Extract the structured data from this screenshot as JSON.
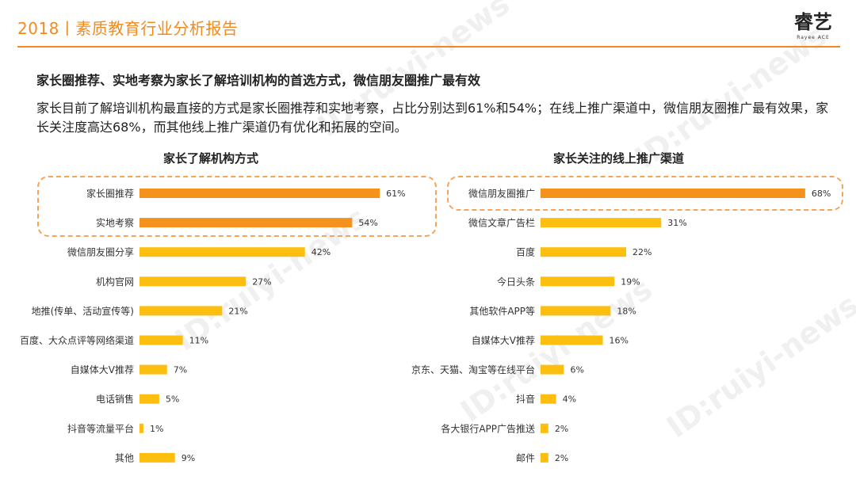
{
  "header": {
    "title": "2018丨素质教育行业分析报告",
    "logo_text": "睿艺",
    "logo_sub": "Rayee ACE"
  },
  "subtitle": "家长圈推荐、实地考察为家长了解培训机构的首选方式，微信朋友圈推广最有效",
  "description": "家长目前了解培训机构最直接的方式是家长圈推荐和实地考察，占比分别达到61%和54%；在线上推广渠道中，微信朋友圈推广最有效果，家长关注度高达68%，而其他线上推广渠道仍有优化和拓展的空间。",
  "watermark": "ID:ruiyi-news",
  "colors": {
    "accent": "#f28a1e",
    "bar_highlight": "#f5921e",
    "bar_default": "#fcbf0f"
  },
  "chart_data": [
    {
      "type": "bar",
      "orientation": "horizontal",
      "title": "家长了解机构方式",
      "categories": [
        "家长圈推荐",
        "实地考察",
        "微信朋友圈分享",
        "机构官网",
        "地推(传单、活动宣传等)",
        "百度、大众点评等网络渠道",
        "自媒体大V推荐",
        "电话销售",
        "抖音等流量平台",
        "其他"
      ],
      "values": [
        61,
        54,
        42,
        27,
        21,
        11,
        7,
        5,
        1,
        9
      ],
      "value_labels": [
        "61%",
        "54%",
        "42%",
        "27%",
        "21%",
        "11%",
        "7%",
        "5%",
        "1%",
        "9%"
      ],
      "highlighted": [
        0,
        1
      ],
      "xlim": [
        0,
        100
      ]
    },
    {
      "type": "bar",
      "orientation": "horizontal",
      "title": "家长关注的线上推广渠道",
      "categories": [
        "微信朋友圈推广",
        "微信文章广告栏",
        "百度",
        "今日头条",
        "其他软件APP等",
        "自媒体大V推荐",
        "京东、天猫、淘宝等在线平台",
        "抖音",
        "各大银行APP广告推送",
        "邮件"
      ],
      "values": [
        68,
        31,
        22,
        19,
        18,
        16,
        6,
        4,
        2,
        2
      ],
      "value_labels": [
        "68%",
        "31%",
        "22%",
        "19%",
        "18%",
        "16%",
        "6%",
        "4%",
        "2%",
        "2%"
      ],
      "highlighted": [
        0
      ],
      "xlim": [
        0,
        100
      ]
    }
  ]
}
